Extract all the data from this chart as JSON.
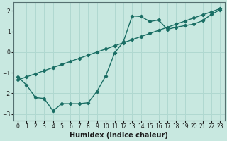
{
  "xlabel": "Humidex (Indice chaleur)",
  "bg_color": "#c8e8e0",
  "grid_color": "#b0d8d0",
  "line_color": "#1a6e64",
  "xlim": [
    -0.5,
    23.5
  ],
  "ylim": [
    -3.3,
    2.4
  ],
  "xticks": [
    0,
    1,
    2,
    3,
    4,
    5,
    6,
    7,
    8,
    9,
    10,
    11,
    12,
    13,
    14,
    15,
    16,
    17,
    18,
    19,
    20,
    21,
    22,
    23
  ],
  "yticks": [
    -3,
    -2,
    -1,
    0,
    1,
    2
  ],
  "curve_x": [
    0,
    1,
    2,
    3,
    4,
    5,
    6,
    7,
    8,
    9,
    10,
    11,
    12,
    13,
    14,
    15,
    16,
    17,
    18,
    19,
    20,
    21,
    22,
    23
  ],
  "curve_y": [
    -1.2,
    -1.6,
    -2.2,
    -2.25,
    -2.85,
    -2.5,
    -2.5,
    -2.5,
    -2.45,
    -1.9,
    -1.15,
    -0.05,
    0.5,
    1.75,
    1.72,
    1.48,
    1.55,
    1.1,
    1.2,
    1.28,
    1.35,
    1.52,
    1.82,
    2.05
  ],
  "trend_x": [
    0,
    1,
    2,
    3,
    4,
    5,
    6,
    7,
    8,
    9,
    10,
    11,
    12,
    13,
    14,
    15,
    16,
    17,
    18,
    19,
    20,
    21,
    22,
    23
  ],
  "trend_y": [
    -1.35,
    -1.2,
    -1.05,
    -0.9,
    -0.75,
    -0.6,
    -0.45,
    -0.3,
    -0.15,
    0.0,
    0.15,
    0.3,
    0.45,
    0.6,
    0.75,
    0.9,
    1.05,
    1.2,
    1.35,
    1.5,
    1.65,
    1.8,
    1.95,
    2.1
  ]
}
